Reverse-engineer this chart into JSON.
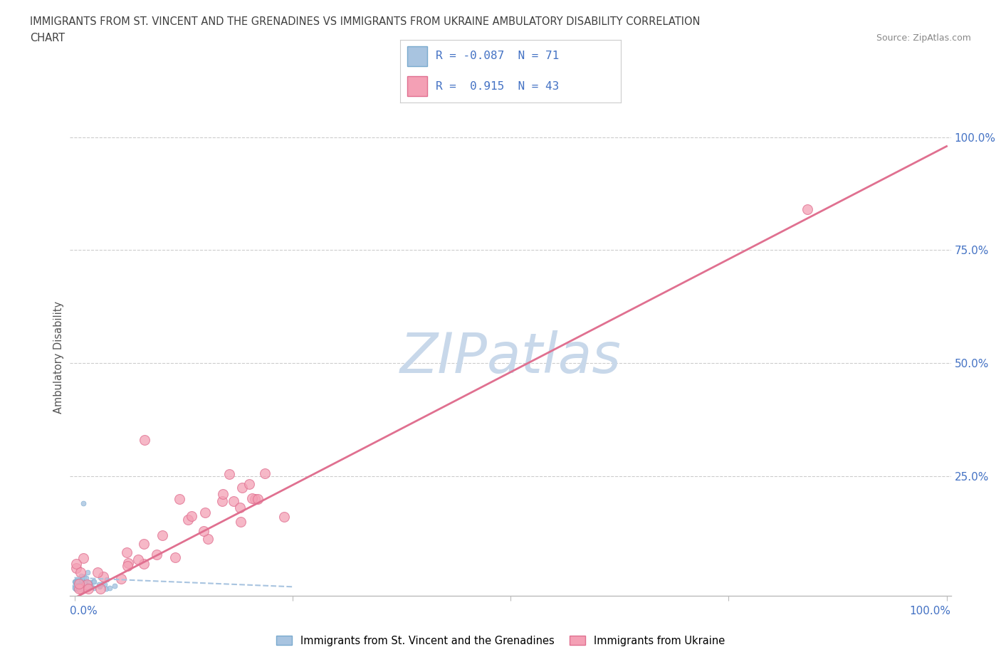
{
  "title_line1": "IMMIGRANTS FROM ST. VINCENT AND THE GRENADINES VS IMMIGRANTS FROM UKRAINE AMBULATORY DISABILITY CORRELATION",
  "title_line2": "CHART",
  "source": "Source: ZipAtlas.com",
  "ylabel": "Ambulatory Disability",
  "watermark": "ZIPatlas",
  "series1_name": "Immigrants from St. Vincent and the Grenadines",
  "series1_color": "#a8c4e0",
  "series1_edge": "#7aaace",
  "series1_R": -0.087,
  "series1_N": 71,
  "series2_name": "Immigrants from Ukraine",
  "series2_color": "#f4a0b5",
  "series2_edge": "#e07090",
  "series2_R": 0.915,
  "series2_N": 43,
  "background_color": "#ffffff",
  "grid_color": "#cccccc",
  "axis_label_color": "#4472c4",
  "title_color": "#404040",
  "watermark_color": "#c8d8ea",
  "trend1_color": "#a8c4e0",
  "trend2_color": "#e07090"
}
